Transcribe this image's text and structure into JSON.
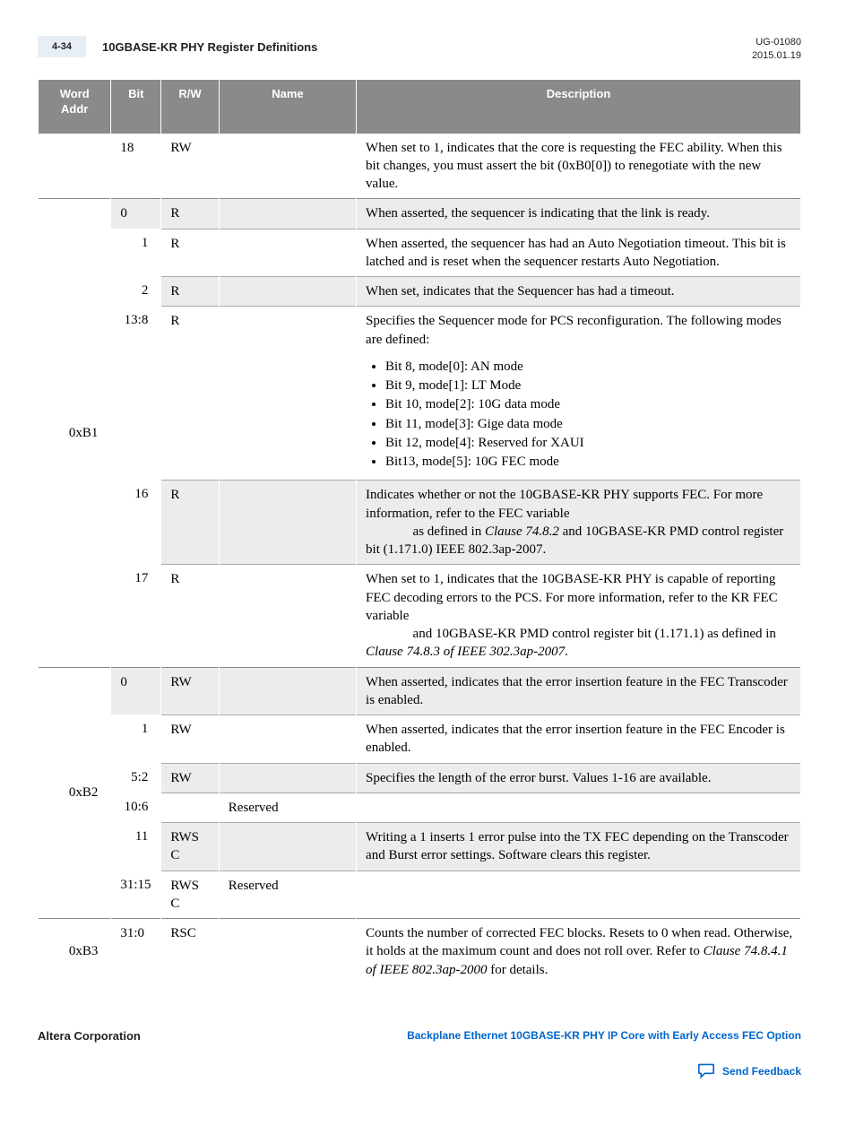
{
  "header": {
    "page_num": "4-34",
    "title": "10GBASE-KR PHY Register Definitions",
    "doc_id": "UG-01080",
    "date": "2015.01.19"
  },
  "table": {
    "columns": [
      "Word Addr",
      "Bit",
      "R/W",
      "Name",
      "Description"
    ],
    "groups": [
      {
        "addr": "",
        "rows": [
          {
            "bit": "18",
            "rw": "RW",
            "name": "",
            "shade": false,
            "desc": "When set to 1, indicates that the core is requesting the FEC ability. When this bit changes, you must assert the bit (0xB0[0]) to renegotiate with the new value."
          }
        ]
      },
      {
        "addr": "0xB1",
        "rows": [
          {
            "bit": "0",
            "rw": "R",
            "name": "",
            "shade": true,
            "desc": "When asserted, the sequencer is indicating that the link is ready."
          },
          {
            "bit": "1",
            "rw": "R",
            "name": "",
            "shade": false,
            "desc": "When asserted, the sequencer has had an Auto Negotiation timeout. This bit is latched and is reset when the sequencer restarts Auto Negotiation."
          },
          {
            "bit": "2",
            "rw": "R",
            "name": "",
            "shade": true,
            "desc": "When set, indicates that the Sequencer has had a timeout."
          },
          {
            "bit": "13:8",
            "rw": "R",
            "name": "",
            "shade": false,
            "desc_intro": "Specifies the Sequencer mode for PCS reconfiguration. The following modes are defined:",
            "modes": [
              "Bit 8, mode[0]: AN mode",
              "Bit 9, mode[1]: LT Mode",
              "Bit 10, mode[2]: 10G data mode",
              "Bit 11, mode[3]: Gige data mode",
              "Bit 12, mode[4]: Reserved for XAUI",
              "Bit13, mode[5]: 10G FEC mode"
            ]
          },
          {
            "bit": "16",
            "rw": "R",
            "name": "",
            "shade": true,
            "desc_parts": [
              {
                "t": "Indicates whether or not the 10GBASE-KR PHY supports FEC. For more information, refer to the FEC variable "
              },
              {
                "t": " as defined in ",
                "indent": true
              },
              {
                "t": "Clause 74.8.2",
                "i": true
              },
              {
                "t": " and 10GBASE-KR PMD control register bit (1.171.0) IEEE 802.3ap-2007."
              }
            ]
          },
          {
            "bit": "17",
            "rw": "R",
            "name": "",
            "shade": false,
            "desc_parts": [
              {
                "t": "When set to 1, indicates that the 10GBASE-KR PHY is capable of reporting FEC decoding errors to the PCS. For more information, refer to the KR FEC variable "
              },
              {
                "t": " and 10GBASE-KR PMD control register bit (1.171.1) as defined in ",
                "indent": true
              },
              {
                "t": "Clause 74.8.3 of IEEE 302.3ap-2007",
                "i": true
              },
              {
                "t": "."
              }
            ]
          }
        ]
      },
      {
        "addr": "0xB2",
        "rows": [
          {
            "bit": "0",
            "rw": "RW",
            "name": "",
            "shade": true,
            "desc": "When asserted, indicates that the error insertion feature in the FEC Transcoder is enabled."
          },
          {
            "bit": "1",
            "rw": "RW",
            "name": "",
            "shade": false,
            "desc": "When asserted, indicates that the error insertion feature in the FEC Encoder is enabled."
          },
          {
            "bit": "5:2",
            "rw": "RW",
            "name": "",
            "shade": true,
            "desc": "Specifies the length of the error burst. Values 1-16 are available."
          },
          {
            "bit": "10:6",
            "rw": "",
            "name": "Reserved",
            "shade": false,
            "desc": ""
          },
          {
            "bit": "11",
            "rw": "RWS C",
            "name": "",
            "shade": true,
            "desc": "Writing a 1 inserts 1 error pulse into the TX FEC depending on the Transcoder and Burst error settings. Software clears this register."
          },
          {
            "bit": "31:15",
            "rw": "RWS C",
            "name": "Reserved",
            "shade": false,
            "desc": ""
          }
        ]
      },
      {
        "addr": "0xB3",
        "rows": [
          {
            "bit": "31:0",
            "rw": "RSC",
            "name": "",
            "shade": false,
            "desc_parts": [
              {
                "t": "Counts the number of corrected FEC blocks. Resets to 0 when read. Otherwise, it holds at the maximum count and does not roll over. Refer to "
              },
              {
                "t": "Clause 74.8.4.1 of IEEE 802.3ap-2000",
                "i": true
              },
              {
                "t": " for details."
              }
            ]
          }
        ]
      }
    ]
  },
  "footer": {
    "company": "Altera Corporation",
    "link": "Backplane Ethernet 10GBASE-KR PHY IP Core with Early Access FEC Option",
    "feedback_label": "Send Feedback"
  },
  "colors": {
    "header_bg": "#8a8a8a",
    "shade_bg": "#ececec",
    "link": "#0066cc",
    "pagebox_bg": "#e8eef5"
  }
}
